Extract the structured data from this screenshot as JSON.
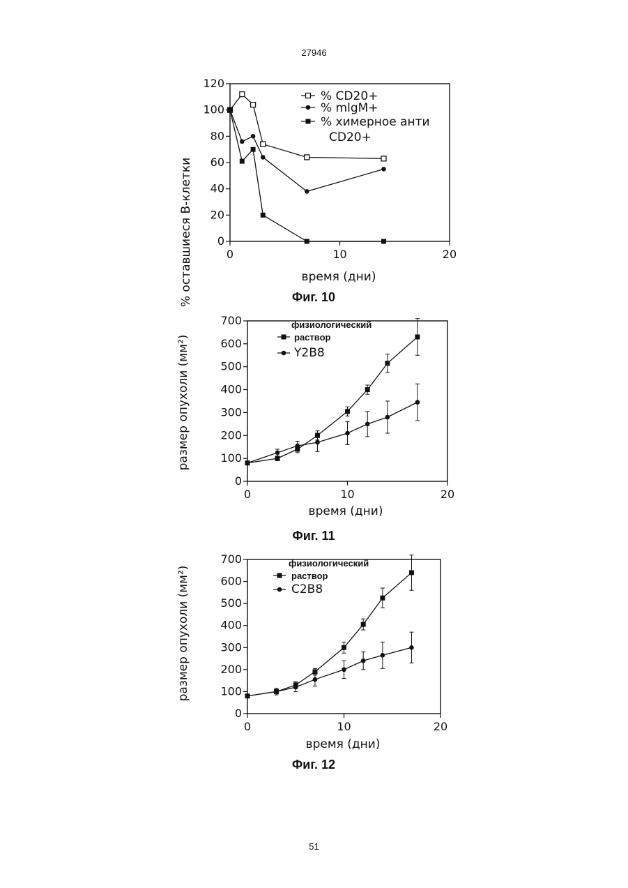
{
  "page": {
    "header_number": "27946",
    "footer_number": "51"
  },
  "chart_data": [
    {
      "type": "line",
      "caption": "Фиг. 10",
      "xlabel": "время (дни)",
      "ylabel": "% оставшиеся В-клетки",
      "xlim": [
        0,
        20
      ],
      "ylim": [
        0,
        120
      ],
      "xticks": [
        0,
        10,
        20
      ],
      "xtick_labels": [
        "0",
        "10",
        "20"
      ],
      "yticks": [
        0,
        20,
        40,
        60,
        80,
        100,
        120
      ],
      "ytick_labels": [
        "0",
        "20",
        "40",
        "60",
        "80",
        "100",
        "120"
      ],
      "legend_position": "top-right",
      "series": [
        {
          "name": "% CD20+",
          "marker": "open-square",
          "x": [
            0,
            1.1,
            2.1,
            3,
            7,
            14
          ],
          "y": [
            100,
            112,
            104,
            74,
            64,
            63
          ]
        },
        {
          "name": "% mlgM+",
          "marker": "circle",
          "x": [
            0,
            1.1,
            2.1,
            3,
            7,
            14
          ],
          "y": [
            100,
            76,
            80,
            64,
            38,
            55
          ]
        },
        {
          "name": "% химерное анти CD20+",
          "marker": "filled-square",
          "x": [
            0,
            1.1,
            2.1,
            3,
            7,
            14
          ],
          "y": [
            100,
            61,
            70,
            20,
            0,
            0
          ]
        }
      ]
    },
    {
      "type": "line",
      "caption": "Фиг. 11",
      "xlabel": "время (дни)",
      "ylabel": "размер опухоли (мм²)",
      "xlim": [
        0,
        20
      ],
      "ylim": [
        0,
        700
      ],
      "xticks": [
        0,
        10,
        20
      ],
      "xtick_labels": [
        "0",
        "10",
        "20"
      ],
      "yticks": [
        0,
        100,
        200,
        300,
        400,
        500,
        600,
        700
      ],
      "ytick_labels": [
        "0",
        "100",
        "200",
        "300",
        "400",
        "500",
        "600",
        "700"
      ],
      "legend_position": "top-left",
      "series": [
        {
          "name": "физиологический раствор",
          "marker": "filled-square",
          "x": [
            0,
            3,
            5,
            7,
            10,
            12,
            14,
            17
          ],
          "y": [
            80,
            100,
            140,
            200,
            305,
            400,
            515,
            630
          ],
          "err": [
            5,
            10,
            15,
            20,
            20,
            20,
            40,
            80
          ]
        },
        {
          "name": "Y2B8",
          "marker": "circle",
          "x": [
            0,
            3,
            5,
            7,
            10,
            12,
            14,
            17
          ],
          "y": [
            80,
            125,
            155,
            170,
            210,
            250,
            280,
            345
          ],
          "err": [
            5,
            15,
            20,
            40,
            50,
            55,
            70,
            80
          ]
        }
      ]
    },
    {
      "type": "line",
      "caption": "Фиг. 12",
      "xlabel": "время (дни)",
      "ylabel": "размер опухоли (мм²)",
      "xlim": [
        0,
        20
      ],
      "ylim": [
        0,
        700
      ],
      "xticks": [
        0,
        10,
        20
      ],
      "xtick_labels": [
        "0",
        "10",
        "20"
      ],
      "yticks": [
        0,
        100,
        200,
        300,
        400,
        500,
        600,
        700
      ],
      "ytick_labels": [
        "0",
        "100",
        "200",
        "300",
        "400",
        "500",
        "600",
        "700"
      ],
      "legend_position": "top-left",
      "series": [
        {
          "name": "физиологический раствор",
          "marker": "filled-square",
          "x": [
            0,
            3,
            5,
            7,
            10,
            12,
            14,
            17
          ],
          "y": [
            80,
            100,
            130,
            190,
            300,
            405,
            525,
            640
          ],
          "err": [
            5,
            10,
            15,
            15,
            25,
            25,
            45,
            80
          ]
        },
        {
          "name": "C2B8",
          "marker": "circle",
          "x": [
            0,
            3,
            5,
            7,
            10,
            12,
            14,
            17
          ],
          "y": [
            80,
            100,
            120,
            155,
            200,
            240,
            265,
            300
          ],
          "err": [
            5,
            15,
            20,
            30,
            40,
            40,
            60,
            70
          ]
        }
      ]
    }
  ]
}
